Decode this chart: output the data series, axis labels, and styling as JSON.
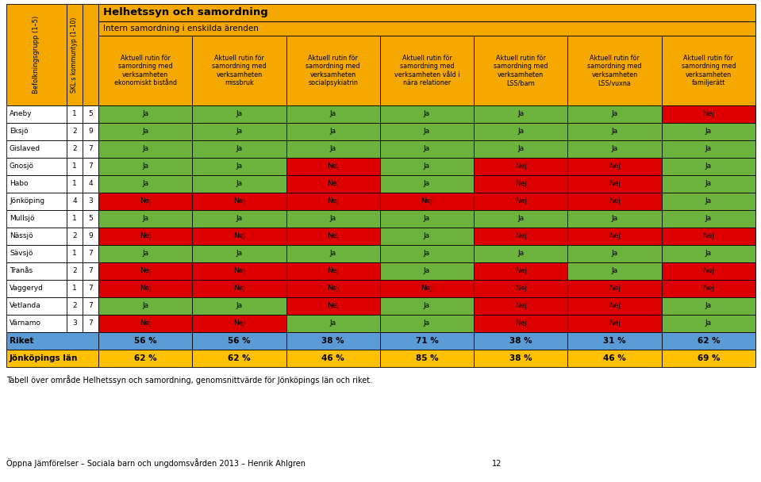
{
  "title1": "Helhetssyn och samordning",
  "subtitle": "Intern samordning i enskilda ärenden",
  "col_headers": [
    "Aktuell rutin för\nsamordning med\nverksamheten\nekonomiskt bistånd",
    "Aktuell rutin för\nsamordning med\nverksamheten\nmissbruk",
    "Aktuell rutin för\nsamordning med\nverksamheten\nsocialpsykiatrin",
    "Aktuell rutin för\nsamordning med\nverksamheten våld i\nnära relationer",
    "Aktuell rutin för\nsamordning med\nverksamheten\nLSS/barn",
    "Aktuell rutin för\nsamordning med\nverksamheten\nLSS/vuxna",
    "Aktuell rutin för\nsamordning med\nverksamheten\nfamiljerätt"
  ],
  "row_header_col1": "Befolkningsgrupp (1–5)",
  "row_header_col2": "SKL:s kommuntyp (1–10)",
  "municipalities": [
    "Aneby",
    "Eksjö",
    "Gislaved",
    "Gnosjö",
    "Habo",
    "Jönköping",
    "Mullsjö",
    "Nässjö",
    "Sävsjö",
    "Tranås",
    "Vaggeryd",
    "Vetlanda",
    "Värnamo"
  ],
  "pop_group": [
    1,
    2,
    2,
    1,
    1,
    4,
    1,
    2,
    1,
    2,
    1,
    2,
    3
  ],
  "kommun_type": [
    5,
    9,
    7,
    7,
    4,
    3,
    5,
    9,
    7,
    7,
    7,
    7,
    7
  ],
  "data": [
    [
      "Ja",
      "Ja",
      "Ja",
      "Ja",
      "Ja",
      "Ja",
      "Nej"
    ],
    [
      "Ja",
      "Ja",
      "Ja",
      "Ja",
      "Ja",
      "Ja",
      "Ja"
    ],
    [
      "Ja",
      "Ja",
      "Ja",
      "Ja",
      "Ja",
      "Ja",
      "Ja"
    ],
    [
      "Ja",
      "Ja",
      "Nej",
      "Ja",
      "Nej",
      "Nej",
      "Ja"
    ],
    [
      "Ja",
      "Ja",
      "Nej",
      "Ja",
      "Nej",
      "Nej",
      "Ja"
    ],
    [
      "Nej",
      "Nej",
      "Nej",
      "Nej",
      "Nej",
      "Nej",
      "Ja"
    ],
    [
      "Ja",
      "Ja",
      "Ja",
      "Ja",
      "Ja",
      "Ja",
      "Ja"
    ],
    [
      "Nej",
      "Nej",
      "Nej",
      "Ja",
      "Nej",
      "Nej",
      "Nej"
    ],
    [
      "Ja",
      "Ja",
      "Ja",
      "Ja",
      "Ja",
      "Ja",
      "Ja"
    ],
    [
      "Nej",
      "Nej",
      "Nej",
      "Ja",
      "Nej",
      "Ja",
      "Nej"
    ],
    [
      "Nej",
      "Nej",
      "Nej",
      "Nej",
      "Nej",
      "Nej",
      "Nej"
    ],
    [
      "Ja",
      "Ja",
      "Nej",
      "Ja",
      "Nej",
      "Nej",
      "Ja"
    ],
    [
      "Nej",
      "Nej",
      "Ja",
      "Ja",
      "Nej",
      "Nej",
      "Ja"
    ]
  ],
  "riket": [
    "56 %",
    "56 %",
    "38 %",
    "71 %",
    "38 %",
    "31 %",
    "62 %"
  ],
  "jonkoping_lan": [
    "62 %",
    "62 %",
    "46 %",
    "85 %",
    "38 %",
    "46 %",
    "69 %"
  ],
  "color_ja": "#6cb33e",
  "color_nej": "#dd0000",
  "color_header_bg": "#f5a800",
  "color_white": "#ffffff",
  "color_riket_bg": "#5b9bd5",
  "color_jonkoping_bg": "#ffc000",
  "caption": "Tabell över område Helhetssyn och samordning, genomsnittvärde för Jönköpings län och riket.",
  "footer": "Öppna Jämförelser – Sociala barn och ungdomsvården 2013 – Henrik Ahlgren",
  "page": "12"
}
